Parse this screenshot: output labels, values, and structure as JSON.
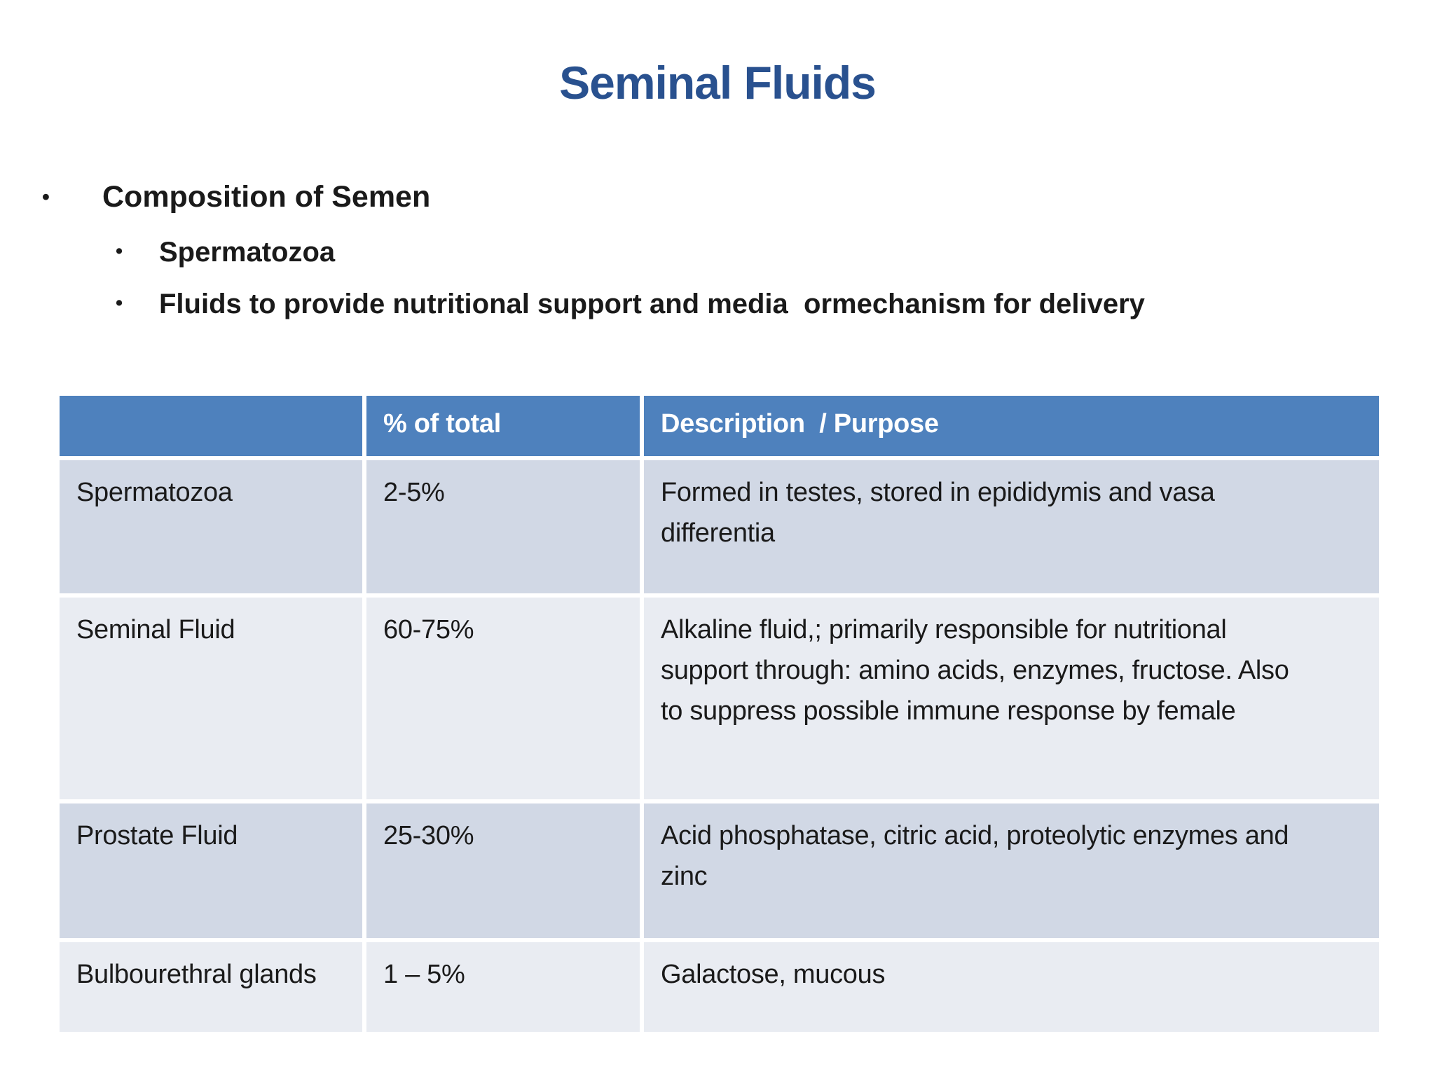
{
  "slide": {
    "title": "Seminal Fluids",
    "bullets": {
      "level1": "Composition of Semen",
      "sub1": "Spermatozoa",
      "sub2": "Fluids to provide nutritional support and media  ormechanism for delivery",
      "marker": "•"
    },
    "table": {
      "headers": {
        "col1": "",
        "col2": "% of total",
        "col3": "Description  / Purpose"
      },
      "rows": [
        {
          "name": "Spermatozoa",
          "percent": "2-5%",
          "description": "Formed in testes, stored in epididymis and vasa differentia"
        },
        {
          "name": "Seminal Fluid",
          "percent": "60-75%",
          "description": "Alkaline fluid,; primarily responsible for nutritional support through: amino acids, enzymes, fructose. Also to suppress possible immune response by female"
        },
        {
          "name": "Prostate Fluid",
          "percent": "25-30%",
          "description": "Acid phosphatase, citric acid, proteolytic enzymes and zinc"
        },
        {
          "name": "Bulbourethral glands",
          "percent": "1 – 5%",
          "description": "Galactose, mucous"
        }
      ]
    },
    "colors": {
      "title_text": "#29518f",
      "header_bg": "#4e81bd",
      "header_text": "#ffffff",
      "row_band_dark": "#d1d8e5",
      "row_band_light": "#e9ecf2",
      "body_text": "#1a1a1a"
    }
  }
}
